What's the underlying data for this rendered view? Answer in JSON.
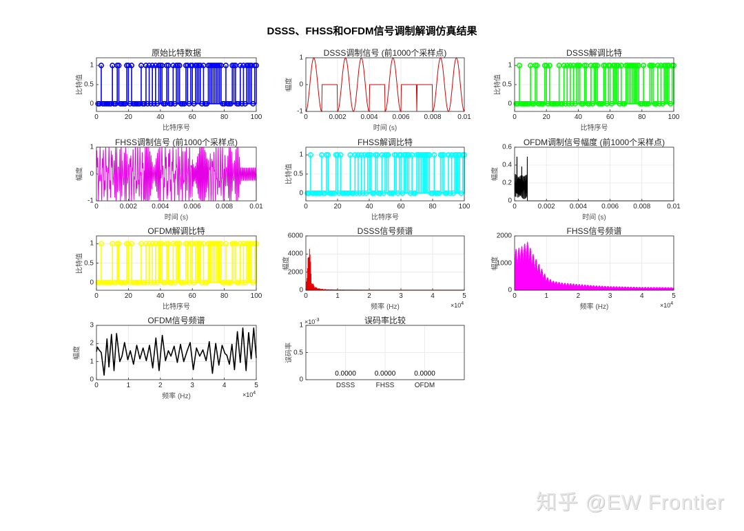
{
  "figure": {
    "title": "DSSS、FHSS和OFDM信号调制解调仿真结果",
    "watermark": "知乎 @EW Frontier"
  },
  "colors": {
    "original_bits": "#0000ff",
    "dsss_signal": "#d40000",
    "dsss_bits": "#00ff00",
    "fhss_signal": "#e600e6",
    "fhss_bits": "#00ffff",
    "ofdm_amplitude": "#000000",
    "ofdm_bits": "#ffff00",
    "dsss_spectrum": "#e60000",
    "fhss_spectrum": "#ff00ff",
    "ofdm_spectrum": "#000000",
    "grid": "#e6e6e6",
    "axes": "#262626"
  },
  "chart_data": [
    {
      "id": "original_bits",
      "type": "stem",
      "title": "原始比特数据",
      "xlabel": "比特序号",
      "ylabel": "比特值",
      "xlim": [
        0,
        100
      ],
      "ylim": [
        -0.2,
        1.2
      ],
      "xticks": [
        0,
        20,
        40,
        60,
        80,
        100
      ],
      "yticks": [
        0,
        0.5,
        1
      ],
      "ones_indices": [
        3,
        10,
        13,
        14,
        19,
        20,
        22,
        28,
        31,
        33,
        35,
        37,
        39,
        40,
        41,
        44,
        45,
        48,
        50,
        51,
        52,
        56,
        57,
        59,
        60,
        62,
        63,
        64,
        65,
        67,
        70,
        71,
        72,
        73,
        74,
        75,
        76,
        77,
        78,
        81,
        85,
        86,
        87,
        90,
        92,
        94,
        95,
        96,
        97,
        99,
        100
      ],
      "n_bits": 100
    },
    {
      "id": "dsss_signal",
      "type": "line",
      "title": "DSSS调制信号 (前1000个采样点)",
      "xlabel": "时间 (s)",
      "ylabel": "幅度",
      "xlim": [
        0,
        0.01
      ],
      "ylim": [
        -1,
        1
      ],
      "xticks": [
        0,
        0.002,
        0.004,
        0.006,
        0.008,
        0.01
      ],
      "yticks": [
        -1,
        0,
        1
      ],
      "segments_ms": [
        "sine",
        "flat",
        "sine",
        "sine",
        "flat",
        "sine",
        "flat",
        "flat",
        "sine",
        "sine"
      ]
    },
    {
      "id": "dsss_bits",
      "type": "stem",
      "title": "DSSS解调比特",
      "xlabel": "比特序号",
      "ylabel": "比特值",
      "xlim": [
        0,
        100
      ],
      "ylim": [
        -0.2,
        1.2
      ],
      "xticks": [
        0,
        20,
        40,
        60,
        80,
        100
      ],
      "yticks": [
        0,
        0.5,
        1
      ],
      "same_as": "original_bits"
    },
    {
      "id": "fhss_signal",
      "type": "line",
      "title": "FHSS调制信号 (前1000个采样点)",
      "xlabel": "时间 (s)",
      "ylabel": "幅度",
      "xlim": [
        0,
        0.01
      ],
      "ylim": [
        -1,
        1
      ],
      "xticks": [
        0,
        0.002,
        0.004,
        0.006,
        0.008,
        0.01
      ],
      "yticks": [
        -1,
        0,
        1
      ],
      "description": "frequency-hopping sinusoid, amplitude ±1, hops every 1 ms"
    },
    {
      "id": "fhss_bits",
      "type": "stem",
      "title": "FHSS解调比特",
      "xlabel": "比特序号",
      "ylabel": "比特值",
      "xlim": [
        0,
        100
      ],
      "ylim": [
        -0.2,
        1.2
      ],
      "xticks": [
        0,
        20,
        40,
        60,
        80,
        100
      ],
      "yticks": [
        0,
        0.5,
        1
      ],
      "same_as": "original_bits"
    },
    {
      "id": "ofdm_amplitude",
      "type": "line",
      "title": "OFDM调制信号幅度 (前1000个采样点)",
      "xlabel": "时间 (s)",
      "ylabel": "幅度",
      "xlim": [
        0,
        0.01
      ],
      "ylim": [
        0,
        0.6
      ],
      "xticks": [
        0,
        0.002,
        0.004,
        0.006,
        0.008,
        0.01
      ],
      "yticks": [
        0,
        0.2,
        0.4,
        0.6
      ],
      "active_until_s": 0.0008,
      "peaks": [
        {
          "x": 0.00015,
          "y": 0.49
        },
        {
          "x": 0.00045,
          "y": 0.38
        },
        {
          "x": 0.0008,
          "y": 0.49
        }
      ],
      "typical_range": [
        0.05,
        0.3
      ]
    },
    {
      "id": "ofdm_bits",
      "type": "stem",
      "title": "OFDM解调比特",
      "xlabel": "比特序号",
      "ylabel": "比特值",
      "xlim": [
        0,
        100
      ],
      "ylim": [
        -0.2,
        1.2
      ],
      "xticks": [
        0,
        20,
        40,
        60,
        80,
        100
      ],
      "yticks": [
        0,
        0.5,
        1
      ],
      "same_as": "original_bits"
    },
    {
      "id": "dsss_spectrum",
      "type": "line",
      "title": "DSSS信号频谱",
      "xlabel": "频率 (Hz)",
      "ylabel": "幅度",
      "xlim": [
        0,
        50000
      ],
      "ylim": [
        0,
        6000
      ],
      "xticks": [
        0,
        1,
        2,
        3,
        4,
        5
      ],
      "x_exponent": "×10^4",
      "yticks": [
        0,
        2000,
        4000,
        6000
      ],
      "peaks": [
        {
          "x": 1000,
          "y": 6000
        },
        {
          "x": 1300,
          "y": 3300
        },
        {
          "x": 1600,
          "y": 2000
        },
        {
          "x": 2500,
          "y": 900
        },
        {
          "x": 3500,
          "y": 500
        },
        {
          "x": 5000,
          "y": 300
        },
        {
          "x": 10000,
          "y": 150
        },
        {
          "x": 20000,
          "y": 80
        }
      ]
    },
    {
      "id": "fhss_spectrum",
      "type": "line",
      "title": "FHSS信号频谱",
      "xlabel": "频率 (Hz)",
      "ylabel": "幅度",
      "xlim": [
        0,
        50000
      ],
      "ylim": [
        0,
        2000
      ],
      "xticks": [
        0,
        1,
        2,
        3,
        4,
        5
      ],
      "x_exponent": "×10^4",
      "yticks": [
        0,
        1000,
        2000
      ],
      "envelope": [
        [
          0,
          1500
        ],
        [
          2000,
          1600
        ],
        [
          4000,
          1800
        ],
        [
          6000,
          1300
        ],
        [
          8000,
          900
        ],
        [
          10000,
          500
        ],
        [
          12000,
          350
        ],
        [
          15000,
          280
        ],
        [
          20000,
          230
        ],
        [
          25000,
          180
        ],
        [
          30000,
          150
        ],
        [
          40000,
          120
        ],
        [
          50000,
          110
        ]
      ]
    },
    {
      "id": "ofdm_spectrum",
      "type": "line",
      "title": "OFDM信号频谱",
      "xlabel": "频率 (Hz)",
      "ylabel": "幅度",
      "xlim": [
        0,
        50000
      ],
      "ylim": [
        0,
        3
      ],
      "xticks": [
        0,
        1,
        2,
        3,
        4,
        5
      ],
      "x_exponent": "×10^4",
      "yticks": [
        0,
        1,
        2,
        3
      ],
      "points": [
        [
          0,
          1.55
        ],
        [
          300,
          1.8
        ],
        [
          800,
          1.65
        ],
        [
          1500,
          1.5
        ],
        [
          2400,
          0.25
        ],
        [
          3300,
          2.25
        ],
        [
          3900,
          0.7
        ],
        [
          4700,
          2.5
        ],
        [
          5500,
          0.5
        ],
        [
          6300,
          2.55
        ],
        [
          7300,
          1.0
        ],
        [
          8000,
          1.3
        ],
        [
          8800,
          2.05
        ],
        [
          9800,
          1.1
        ],
        [
          10600,
          1.6
        ],
        [
          11600,
          0.85
        ],
        [
          12600,
          1.9
        ],
        [
          13600,
          1.15
        ],
        [
          14600,
          1.75
        ],
        [
          15600,
          1.05
        ],
        [
          16600,
          1.9
        ],
        [
          17600,
          0.65
        ],
        [
          18600,
          2.3
        ],
        [
          19600,
          0.5
        ],
        [
          20600,
          2.45
        ],
        [
          21600,
          1.05
        ],
        [
          22500,
          1.6
        ],
        [
          23300,
          1.3
        ],
        [
          24300,
          1.85
        ],
        [
          25300,
          0.95
        ],
        [
          26300,
          1.95
        ],
        [
          27300,
          1.0
        ],
        [
          28300,
          1.55
        ],
        [
          29300,
          2.05
        ],
        [
          30300,
          0.55
        ],
        [
          31300,
          1.75
        ],
        [
          32300,
          1.3
        ],
        [
          33300,
          1.65
        ],
        [
          34300,
          1.05
        ],
        [
          35300,
          2.1
        ],
        [
          36300,
          0.35
        ],
        [
          37300,
          2.0
        ],
        [
          38300,
          0.8
        ],
        [
          39300,
          1.9
        ],
        [
          40200,
          1.45
        ],
        [
          40800,
          1.35
        ],
        [
          41600,
          0.85
        ],
        [
          42400,
          1.95
        ],
        [
          43200,
          0.55
        ],
        [
          44100,
          2.65
        ],
        [
          45000,
          0.95
        ],
        [
          45800,
          2.85
        ],
        [
          46800,
          0.5
        ],
        [
          47600,
          2.6
        ],
        [
          48400,
          1.15
        ],
        [
          49200,
          2.85
        ],
        [
          50000,
          1.2
        ]
      ]
    },
    {
      "id": "ber",
      "type": "bar",
      "title": "误码率比较",
      "ylabel": "误码率",
      "categories": [
        "DSSS",
        "FHSS",
        "OFDM"
      ],
      "values": [
        0,
        0,
        0
      ],
      "value_labels": [
        "0.0000",
        "0.0000",
        "0.0000"
      ],
      "ylim": [
        0,
        0.001
      ],
      "yticks": [
        "0",
        "0.5",
        "1"
      ],
      "y_exponent": "×10^-3",
      "xlim": [
        0,
        4
      ]
    }
  ]
}
